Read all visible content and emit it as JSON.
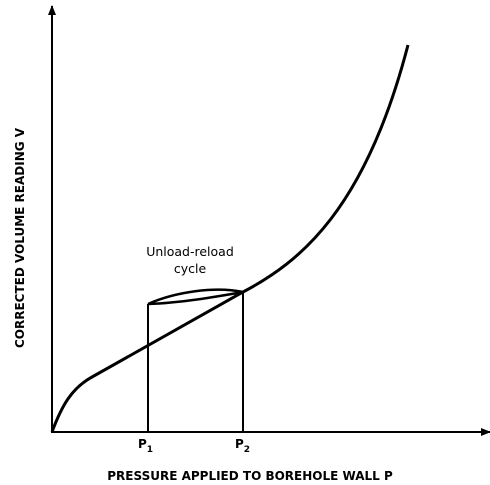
{
  "y_axis_label": "CORRECTED VOLUME READING V",
  "x_axis_label": "PRESSURE APPLIED TO BOREHOLE WALL P",
  "annotation": [
    "Unload-reload",
    "cycle"
  ],
  "markers": [
    {
      "letter": "P",
      "subscript": "1"
    },
    {
      "letter": "P",
      "subscript": "2"
    }
  ]
}
